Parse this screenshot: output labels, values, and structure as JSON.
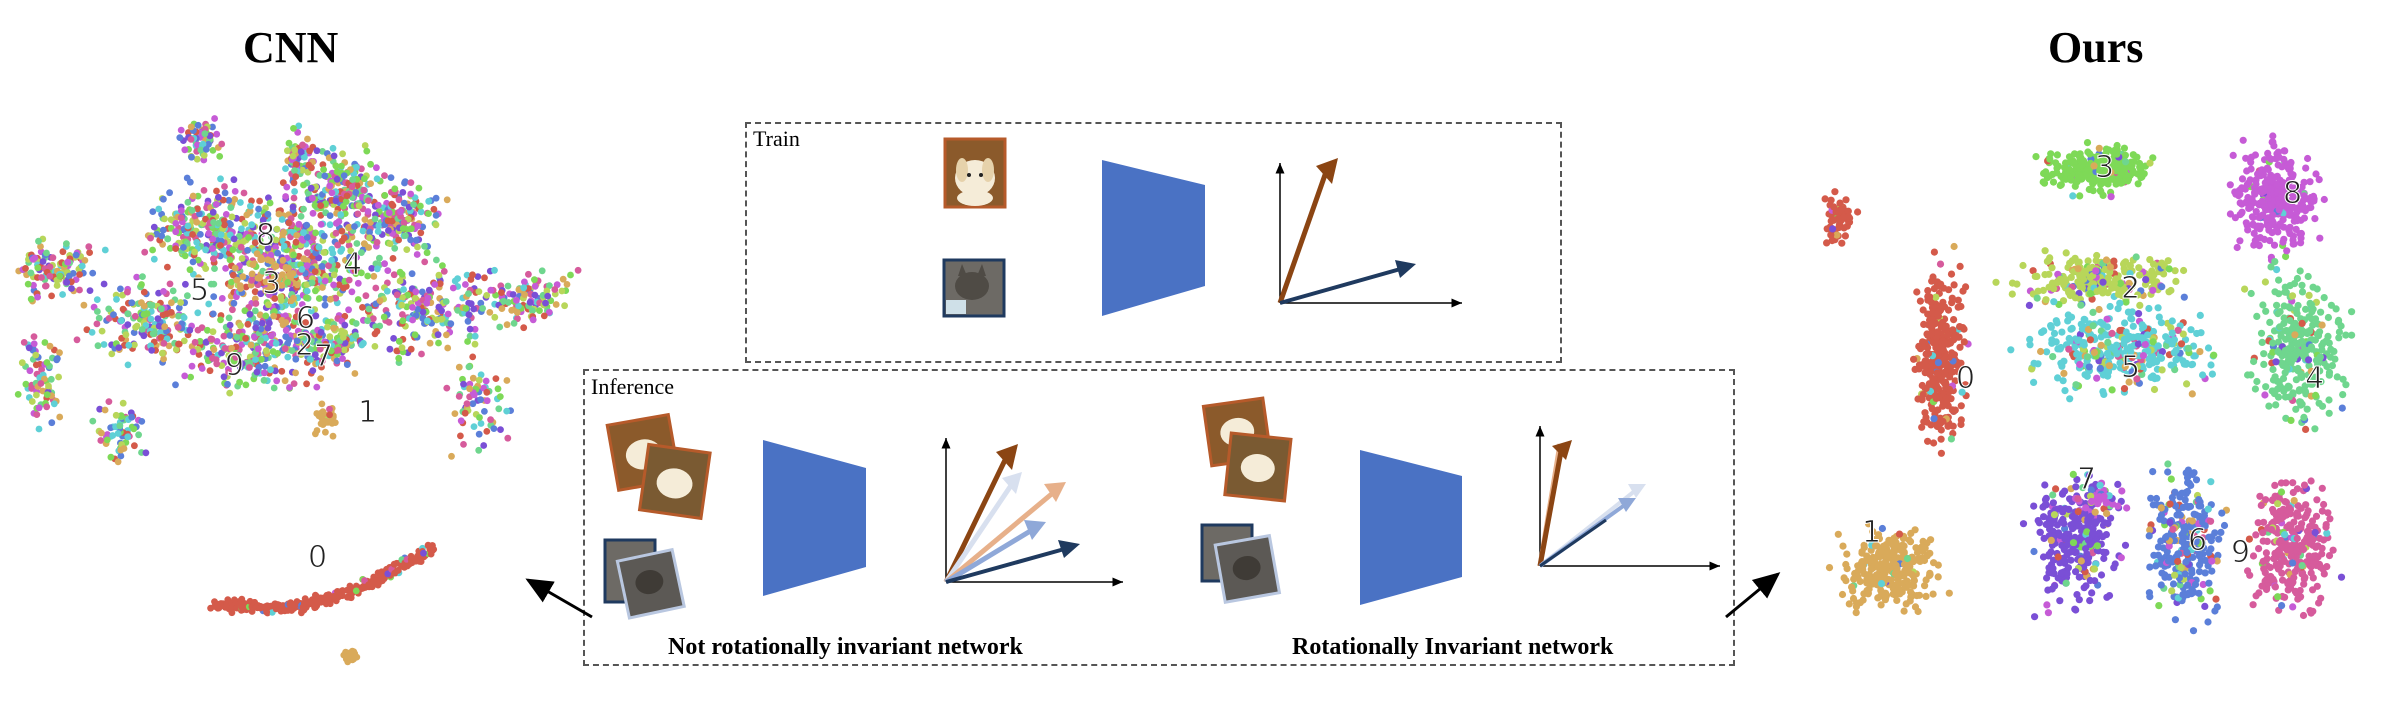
{
  "titles": {
    "left": "CNN",
    "right": "Ours"
  },
  "train_box": {
    "label": "Train"
  },
  "inference_box": {
    "label": "Inference",
    "caption_left": "Not rotationally invariant network",
    "caption_right": "Rotationally Invariant network"
  },
  "cluster_labels": {
    "cnn": [
      "8",
      "3",
      "4",
      "5",
      "6",
      "2",
      "7",
      "9",
      "1",
      "0"
    ],
    "ours": [
      "3",
      "8",
      "2",
      "0",
      "5",
      "4",
      "1",
      "7",
      "6",
      "9"
    ]
  },
  "colors": {
    "0": "#d45a4a",
    "1": "#d9aa5a",
    "2": "#b8d65a",
    "3": "#7ed957",
    "4": "#6fd68e",
    "5": "#5fd0d6",
    "6": "#5b7fd9",
    "7": "#7a4fd6",
    "8": "#c65bd6",
    "9": "#d65b9c",
    "encoder": "#4a72c4",
    "dog_frame": "#b65a2a",
    "cat_frame": "#1f3a5f",
    "dog_arrow": "#8b4513",
    "cat_arrow": "#1f3a5f"
  }
}
